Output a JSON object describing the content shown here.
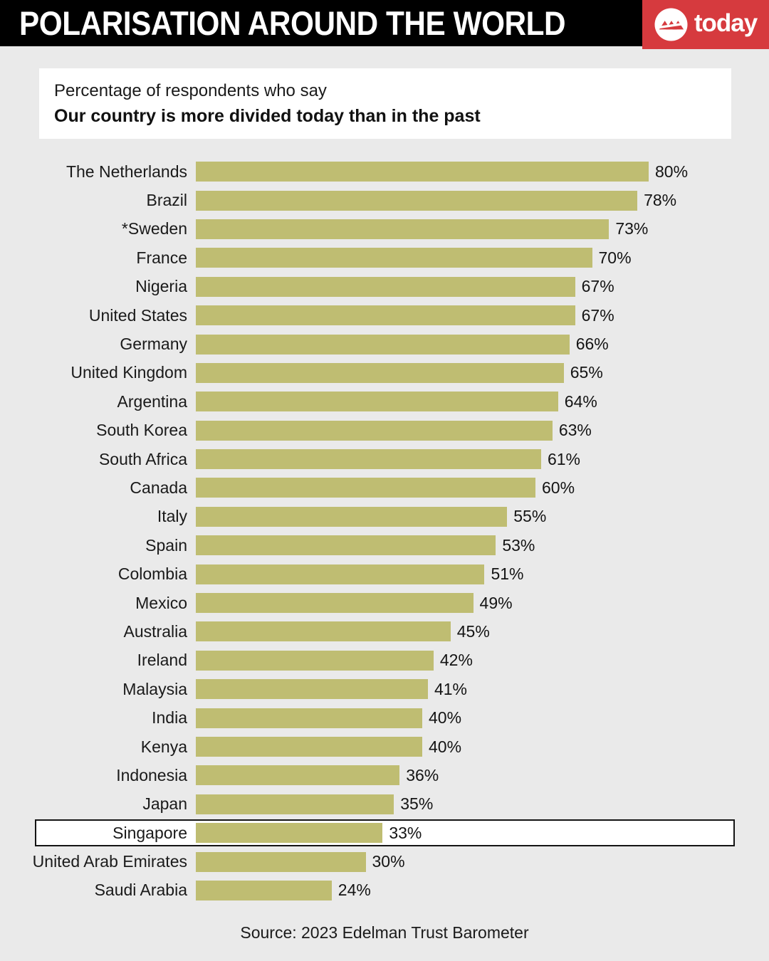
{
  "header": {
    "title": "POLARISATION AROUND THE WORLD",
    "logo_text": "today"
  },
  "subtitle": {
    "line1": "Percentage of respondents who say",
    "line2": "Our country is more divided today than in the past"
  },
  "chart_data": {
    "type": "bar",
    "orientation": "horizontal",
    "unit": "%",
    "categories": [
      "The Netherlands",
      "Brazil",
      "*Sweden",
      "France",
      "Nigeria",
      "United States",
      "Germany",
      "United Kingdom",
      "Argentina",
      "South Korea",
      "South Africa",
      "Canada",
      "Italy",
      "Spain",
      "Colombia",
      "Mexico",
      "Australia",
      "Ireland",
      "Malaysia",
      "India",
      "Kenya",
      "Indonesia",
      "Japan",
      "Singapore",
      "United Arab Emirates",
      "Saudi Arabia"
    ],
    "values": [
      80,
      78,
      73,
      70,
      67,
      67,
      66,
      65,
      64,
      63,
      61,
      60,
      55,
      53,
      51,
      49,
      45,
      42,
      41,
      40,
      40,
      36,
      35,
      33,
      30,
      24
    ],
    "highlighted_category": "Singapore",
    "bar_color": "#bfbd72",
    "value_labels_shown": true,
    "xlim": [
      0,
      100
    ],
    "grid": false,
    "legend": false
  },
  "footer": {
    "source": "Source: 2023 Edelman Trust Barometer"
  },
  "colors": {
    "background": "#eaeaea",
    "header_bg": "#000000",
    "logo_red": "#d63a3e",
    "bar": "#bfbd72",
    "text": "#1a1a1a",
    "highlight_box_bg": "#ffffff",
    "highlight_box_border": "#141414"
  }
}
